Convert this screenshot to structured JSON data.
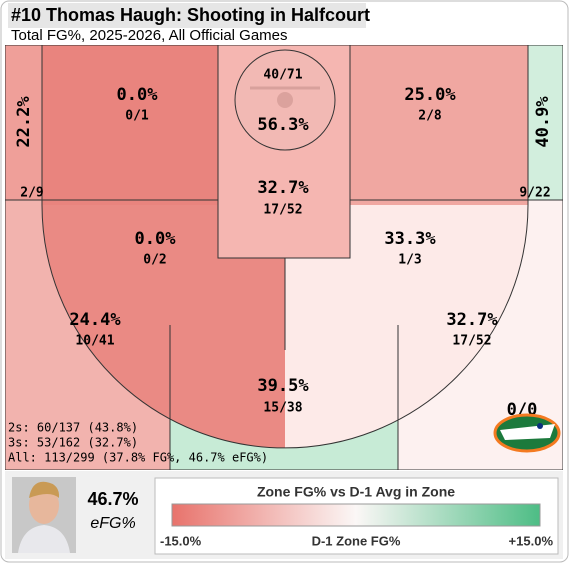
{
  "header": {
    "title": "#10 Thomas Haugh: Shooting in Halfcourt",
    "subtitle": "Total FG%, 2025-2026, All Official Games"
  },
  "zones": [
    {
      "pct": "22.2%",
      "made_att": "2/9"
    },
    {
      "pct": "0.0%",
      "made_att": "0/1"
    },
    {
      "pct": "56.3%",
      "made_att": "40/71"
    },
    {
      "pct": "25.0%",
      "made_att": "2/8"
    },
    {
      "pct": "40.9%",
      "made_att": "9/22"
    },
    {
      "pct": "32.7%",
      "made_att": "17/52"
    },
    {
      "pct": "0.0%",
      "made_att": "0/2"
    },
    {
      "pct": "33.3%",
      "made_att": "1/3"
    },
    {
      "pct": "24.4%",
      "made_att": "10/41"
    },
    {
      "pct": "32.7%",
      "made_att": "17/52"
    },
    {
      "pct": "39.5%",
      "made_att": "15/38"
    }
  ],
  "backcourt": {
    "made_att": "0/0"
  },
  "summary": [
    "2s: 60/137 (43.8%)",
    "3s: 53/162 (32.7%)",
    "All: 113/299 (37.8% FG%, 46.7% eFG%)"
  ],
  "efg": {
    "value": "46.7%",
    "label": "eFG%"
  },
  "legend": {
    "title": "Zone FG% vs D-1 Avg in Zone",
    "low": "-15.0%",
    "mid": "D-1 Zone FG%",
    "high": "+15.0%"
  }
}
